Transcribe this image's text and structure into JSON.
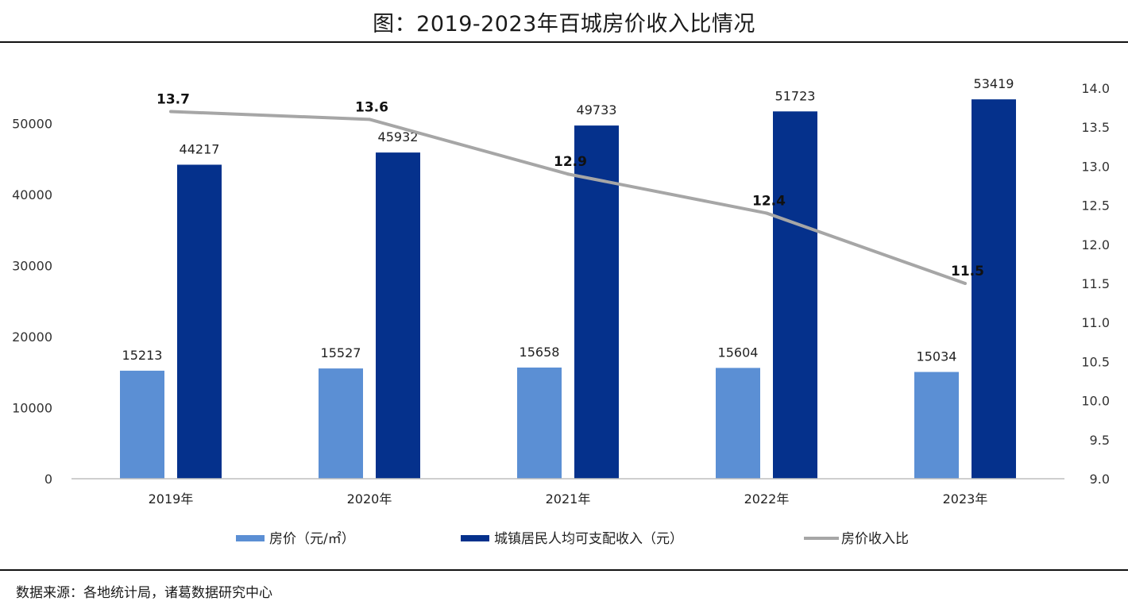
{
  "title": "图：2019-2023年百城房价收入比情况",
  "source": "数据来源：各地统计局，诸葛数据研究中心",
  "colors": {
    "price_bar": "#5b8fd4",
    "income_bar": "#05318c",
    "ratio_line": "#a6a6a6",
    "axis": "#bfbfbf"
  },
  "chart_data": {
    "type": "bar",
    "categories": [
      "2019年",
      "2020年",
      "2021年",
      "2022年",
      "2023年"
    ],
    "series": [
      {
        "name": "房价（元/㎡）",
        "type": "bar",
        "axis": "left",
        "values": [
          15213,
          15527,
          15658,
          15604,
          15034
        ]
      },
      {
        "name": "城镇居民人均可支配收入（元）",
        "type": "bar",
        "axis": "left",
        "values": [
          44217,
          45932,
          49733,
          51723,
          53419
        ]
      },
      {
        "name": "房价收入比",
        "type": "line",
        "axis": "right",
        "values": [
          13.7,
          13.6,
          12.9,
          12.4,
          11.5
        ]
      }
    ],
    "left_axis": {
      "ticks": [
        "0",
        "10000",
        "20000",
        "30000",
        "40000",
        "50000"
      ],
      "min": 0,
      "max": 55000
    },
    "right_axis": {
      "ticks": [
        "9.0",
        "9.5",
        "10.0",
        "10.5",
        "11.0",
        "11.5",
        "12.0",
        "12.5",
        "13.0",
        "13.5",
        "14.0"
      ],
      "min": 9.0,
      "max": 14.0
    },
    "ratio_labels": [
      "13.7",
      "13.6",
      "12.9",
      "12.4",
      "11.5"
    ],
    "legend_position": "bottom",
    "grid": false
  }
}
